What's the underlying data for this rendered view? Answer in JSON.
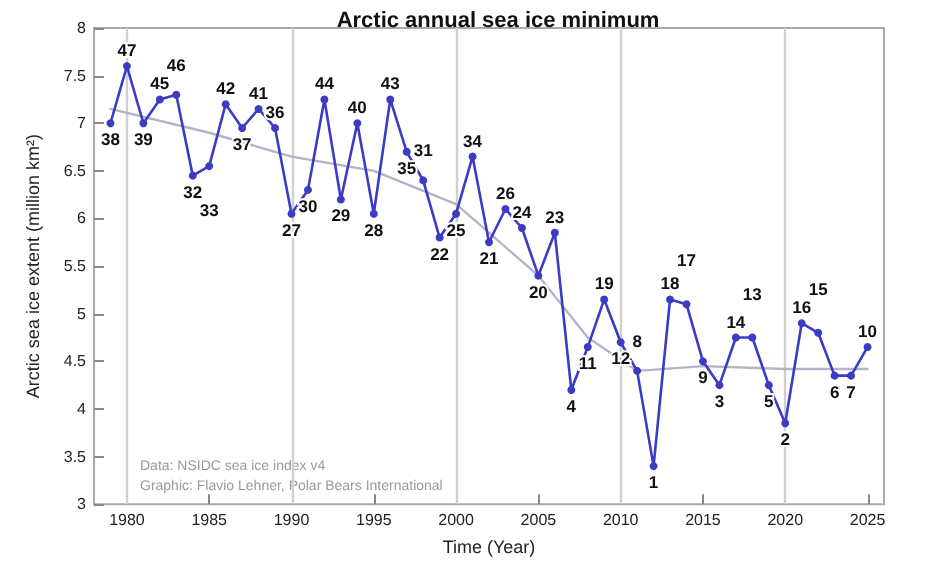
{
  "chart_data": {
    "type": "line",
    "title": "Arctic annual sea ice minimum",
    "xlabel": "Time (Year)",
    "ylabel": "Arctic sea ice extent (million km²)",
    "x": [
      1979,
      1980,
      1981,
      1982,
      1983,
      1984,
      1985,
      1986,
      1987,
      1988,
      1989,
      1990,
      1991,
      1992,
      1993,
      1994,
      1995,
      1996,
      1997,
      1998,
      1999,
      2000,
      2001,
      2002,
      2003,
      2004,
      2005,
      2006,
      2007,
      2008,
      2009,
      2010,
      2011,
      2012,
      2013,
      2014,
      2015,
      2016,
      2017,
      2018,
      2019,
      2020,
      2021,
      2022,
      2023,
      2024,
      2025
    ],
    "series": [
      {
        "color": "#3b3bc4",
        "marker": "circle",
        "values": [
          7.0,
          7.6,
          7.0,
          7.25,
          7.3,
          6.45,
          6.55,
          7.2,
          6.95,
          7.15,
          6.95,
          6.05,
          6.3,
          7.25,
          6.2,
          7.0,
          6.05,
          7.25,
          6.7,
          6.4,
          5.8,
          6.05,
          6.65,
          5.75,
          6.1,
          5.9,
          5.4,
          5.85,
          4.2,
          4.65,
          5.15,
          4.7,
          4.4,
          3.4,
          5.15,
          5.1,
          4.5,
          4.25,
          4.75,
          4.75,
          4.25,
          3.85,
          4.9,
          4.8,
          4.35,
          4.35,
          4.65
        ]
      },
      {
        "color": "#b4b4c8",
        "marker": "none",
        "x": [
          1979,
          1985,
          1990,
          1995,
          2000,
          2005,
          2008,
          2011,
          2015,
          2020,
          2025
        ],
        "values": [
          7.15,
          6.9,
          6.65,
          6.5,
          6.15,
          5.4,
          4.75,
          4.4,
          4.45,
          4.42,
          4.42
        ]
      }
    ],
    "xlim": [
      1978,
      2026
    ],
    "xticks": [
      1980,
      1985,
      1990,
      1995,
      2000,
      2005,
      2010,
      2015,
      2020,
      2025
    ],
    "ylim": [
      3,
      8
    ],
    "yticks": [
      3,
      3.5,
      4,
      4.5,
      5,
      5.5,
      6,
      6.5,
      7,
      7.5,
      8
    ],
    "ref_lines": [
      {
        "axis": "x",
        "value": 1980,
        "color": "#d0d0d0"
      },
      {
        "axis": "x",
        "value": 1990,
        "color": "#d0d0d0"
      },
      {
        "axis": "x",
        "value": 2000,
        "color": "#d0d0d0"
      },
      {
        "axis": "x",
        "value": 2010,
        "color": "#d0d0d0"
      },
      {
        "axis": "x",
        "value": 2020,
        "color": "#d0d0d0"
      }
    ],
    "grid": false,
    "annotations": [
      "Data: NSIDC sea ice index v4",
      "Graphic: Flavio Lehner, Polar Bears International",
      {
        "text": "38",
        "x": 1979,
        "y": 7.0
      },
      {
        "text": "47",
        "x": 1980,
        "y": 7.6
      },
      {
        "text": "39",
        "x": 1981,
        "y": 7.0
      },
      {
        "text": "45",
        "x": 1982,
        "y": 7.25
      },
      {
        "text": "46",
        "x": 1983,
        "y": 7.3
      },
      {
        "text": "32",
        "x": 1984,
        "y": 6.45
      },
      {
        "text": "33",
        "x": 1985,
        "y": 6.55
      },
      {
        "text": "42",
        "x": 1986,
        "y": 7.2
      },
      {
        "text": "37",
        "x": 1987,
        "y": 6.95
      },
      {
        "text": "41",
        "x": 1988,
        "y": 7.15
      },
      {
        "text": "36",
        "x": 1989,
        "y": 6.95
      },
      {
        "text": "27",
        "x": 1990,
        "y": 6.05
      },
      {
        "text": "30",
        "x": 1991,
        "y": 6.3
      },
      {
        "text": "44",
        "x": 1992,
        "y": 7.25
      },
      {
        "text": "29",
        "x": 1993,
        "y": 6.2
      },
      {
        "text": "40",
        "x": 1994,
        "y": 7.0
      },
      {
        "text": "28",
        "x": 1995,
        "y": 6.05
      },
      {
        "text": "43",
        "x": 1996,
        "y": 7.25
      },
      {
        "text": "35",
        "x": 1997,
        "y": 6.7
      },
      {
        "text": "31",
        "x": 1998,
        "y": 6.4
      },
      {
        "text": "22",
        "x": 1999,
        "y": 5.8
      },
      {
        "text": "25",
        "x": 2000,
        "y": 6.05
      },
      {
        "text": "34",
        "x": 2001,
        "y": 6.65
      },
      {
        "text": "21",
        "x": 2002,
        "y": 5.75
      },
      {
        "text": "26",
        "x": 2003,
        "y": 6.1
      },
      {
        "text": "24",
        "x": 2004,
        "y": 5.9
      },
      {
        "text": "20",
        "x": 2005,
        "y": 5.4
      },
      {
        "text": "23",
        "x": 2006,
        "y": 5.85
      },
      {
        "text": "4",
        "x": 2007,
        "y": 4.2
      },
      {
        "text": "11",
        "x": 2008,
        "y": 4.65
      },
      {
        "text": "19",
        "x": 2009,
        "y": 5.15
      },
      {
        "text": "12",
        "x": 2010,
        "y": 4.7
      },
      {
        "text": "8",
        "x": 2011,
        "y": 4.4
      },
      {
        "text": "1",
        "x": 2012,
        "y": 3.4
      },
      {
        "text": "18",
        "x": 2013,
        "y": 5.15
      },
      {
        "text": "17",
        "x": 2014,
        "y": 5.1
      },
      {
        "text": "9",
        "x": 2015,
        "y": 4.5
      },
      {
        "text": "3",
        "x": 2016,
        "y": 4.25
      },
      {
        "text": "14",
        "x": 2017,
        "y": 4.75
      },
      {
        "text": "13",
        "x": 2018,
        "y": 4.75
      },
      {
        "text": "5",
        "x": 2019,
        "y": 4.25
      },
      {
        "text": "2",
        "x": 2020,
        "y": 3.85
      },
      {
        "text": "16",
        "x": 2021,
        "y": 4.9
      },
      {
        "text": "15",
        "x": 2022,
        "y": 4.8
      },
      {
        "text": "6",
        "x": 2023,
        "y": 4.35
      },
      {
        "text": "7",
        "x": 2024,
        "y": 4.35
      },
      {
        "text": "10",
        "x": 2025,
        "y": 4.65
      }
    ]
  }
}
